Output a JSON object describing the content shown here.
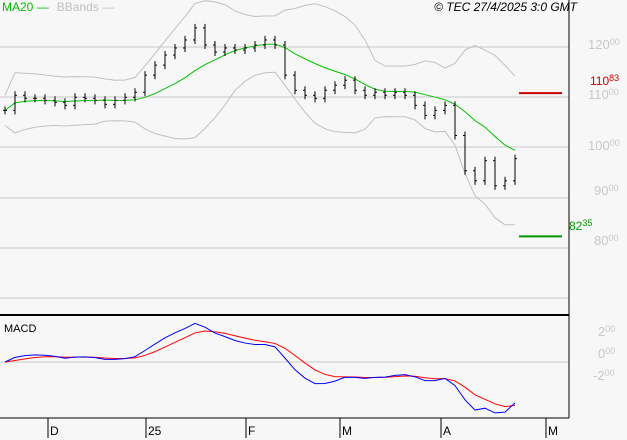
{
  "legend": {
    "ma20": "MA20",
    "bbands": "BBands"
  },
  "copyright": "© TEC 27/4/2025 3:0 GMT",
  "colors": {
    "ma20": "#00c000",
    "bbands": "#c0c0c0",
    "resistance": "#cc0000",
    "support": "#009900",
    "macd": "#0000ff",
    "signal": "#ff0000"
  },
  "chart_data": {
    "type": "ohlc",
    "price_axis": {
      "ylim": [
        65,
        128
      ],
      "ticks": [
        {
          "v": 120,
          "int": "120",
          "dec": "00"
        },
        {
          "v": 110,
          "int": "110",
          "dec": "00"
        },
        {
          "v": 100,
          "int": "100",
          "dec": "00"
        },
        {
          "v": 90,
          "int": "90",
          "dec": "00"
        },
        {
          "v": 80,
          "int": "80",
          "dec": "00"
        }
      ]
    },
    "closes": [
      107.4,
      110.4,
      109.8,
      109.8,
      109.4,
      109,
      108.4,
      110,
      109.8,
      109.4,
      108.6,
      109.4,
      110,
      111,
      114.4,
      116.4,
      118.4,
      119.8,
      121.4,
      123.8,
      120.4,
      119,
      119.8,
      119.4,
      119.8,
      120.4,
      121.4,
      120.4,
      114.4,
      111.4,
      110.4,
      109.8,
      111.4,
      112.4,
      113.4,
      111.4,
      110.4,
      111,
      110.4,
      111,
      110.4,
      108.4,
      106.4,
      107.4,
      108.4,
      102.4,
      95.4,
      93.4,
      97.4,
      92.4,
      93.4,
      97.8
    ],
    "resistance": {
      "value": 110.83,
      "int": "110",
      "dec": "83"
    },
    "support": {
      "value": 82.35,
      "int": "82",
      "dec": "35"
    },
    "macd_panel": {
      "title": "MACD",
      "ylim": [
        -4.4,
        5
      ],
      "ticks": [
        {
          "v": 2,
          "int": "2",
          "dec": "00"
        },
        {
          "v": 0,
          "int": "0",
          "dec": "00"
        },
        {
          "v": -2,
          "int": "-2",
          "dec": "00"
        }
      ]
    },
    "x_labels": [
      {
        "label": "D",
        "bar": 4.5
      },
      {
        "label": "25",
        "bar": 14.3
      },
      {
        "label": "F",
        "bar": 24.3
      },
      {
        "label": "M",
        "bar": 33.7
      },
      {
        "label": "A",
        "bar": 43.8
      },
      {
        "label": "M",
        "bar": 54.3
      }
    ]
  }
}
